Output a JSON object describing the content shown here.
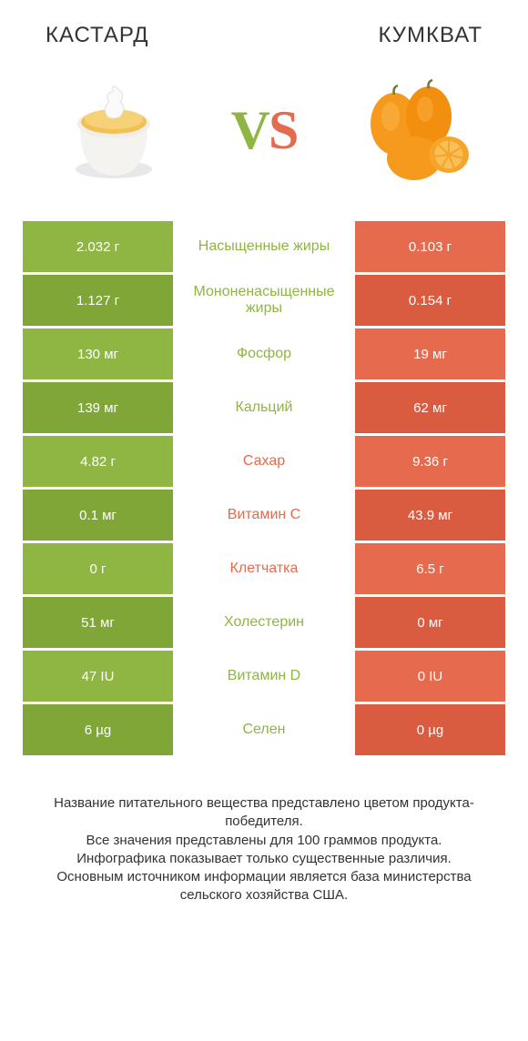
{
  "colors": {
    "green": "#8fb542",
    "green_dark": "#7fa636",
    "orange": "#e56a4e",
    "orange_dark": "#d95c40",
    "white": "#ffffff",
    "text": "#333333"
  },
  "header": {
    "left": "КАСТАРД",
    "right": "КУМКВАТ"
  },
  "vs": {
    "v": "V",
    "s": "S"
  },
  "rows": [
    {
      "left": "2.032 г",
      "label": "Насыщенные жиры",
      "right": "0.103 г",
      "winner": "left"
    },
    {
      "left": "1.127 г",
      "label": "Мононенасыщенные жиры",
      "right": "0.154 г",
      "winner": "left"
    },
    {
      "left": "130 мг",
      "label": "Фосфор",
      "right": "19 мг",
      "winner": "left"
    },
    {
      "left": "139 мг",
      "label": "Кальций",
      "right": "62 мг",
      "winner": "left"
    },
    {
      "left": "4.82 г",
      "label": "Сахар",
      "right": "9.36 г",
      "winner": "right"
    },
    {
      "left": "0.1 мг",
      "label": "Витамин C",
      "right": "43.9 мг",
      "winner": "right"
    },
    {
      "left": "0 г",
      "label": "Клетчатка",
      "right": "6.5 г",
      "winner": "right"
    },
    {
      "left": "51 мг",
      "label": "Холестерин",
      "right": "0 мг",
      "winner": "left"
    },
    {
      "left": "47 IU",
      "label": "Витамин D",
      "right": "0 IU",
      "winner": "left"
    },
    {
      "left": "6 µg",
      "label": "Селен",
      "right": "0 µg",
      "winner": "left"
    }
  ],
  "footer": "Название питательного вещества представлено цветом продукта-победителя.\nВсе значения представлены для 100 граммов продукта.\nИнфографика показывает только существенные различия.\nОсновным источником информации является база министерства сельского хозяйства США."
}
